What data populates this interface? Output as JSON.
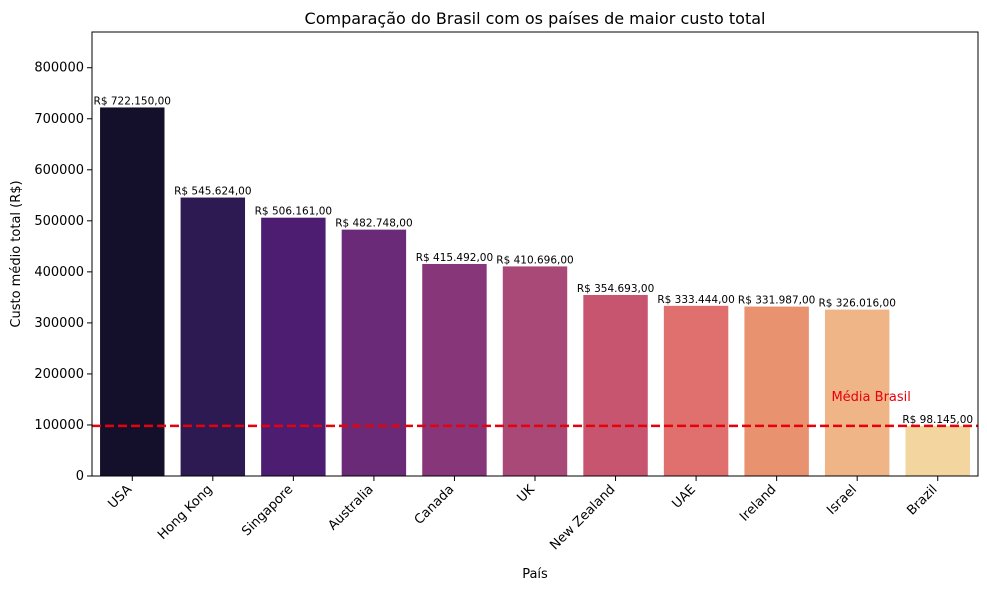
{
  "chart_data": {
    "type": "bar",
    "title": "Comparação do Brasil com os países de maior custo total",
    "xlabel": "País",
    "ylabel": "Custo médio total (R$)",
    "ylim": [
      0,
      870000
    ],
    "yticks": [
      0,
      100000,
      200000,
      300000,
      400000,
      500000,
      600000,
      700000,
      800000
    ],
    "ytick_labels": [
      "0",
      "100000",
      "200000",
      "300000",
      "400000",
      "500000",
      "600000",
      "700000",
      "800000"
    ],
    "categories": [
      "USA",
      "Hong Kong",
      "Singapore",
      "Australia",
      "Canada",
      "UK",
      "New Zealand",
      "UAE",
      "Ireland",
      "Israel",
      "Brazil"
    ],
    "values": [
      722150,
      545624,
      506161,
      482748,
      415492,
      410696,
      354693,
      333444,
      331987,
      326016,
      98145
    ],
    "value_labels": [
      "R$ 722.150,00",
      "R$ 545.624,00",
      "R$ 506.161,00",
      "R$ 482.748,00",
      "R$ 415.492,00",
      "R$ 410.696,00",
      "R$ 354.693,00",
      "R$ 333.444,00",
      "R$ 331.987,00",
      "R$ 326.016,00",
      "R$ 98.145,00"
    ],
    "bar_colors": [
      "#140f2b",
      "#2d1a52",
      "#4d1d72",
      "#6a2a78",
      "#87367a",
      "#a84978",
      "#c8556f",
      "#e0706d",
      "#e8926f",
      "#f0b587",
      "#f3d59f"
    ],
    "reference_line": {
      "value": 98145,
      "label": "Média Brasil",
      "color": "#e8000b",
      "style": "dashed"
    },
    "grid": false
  }
}
